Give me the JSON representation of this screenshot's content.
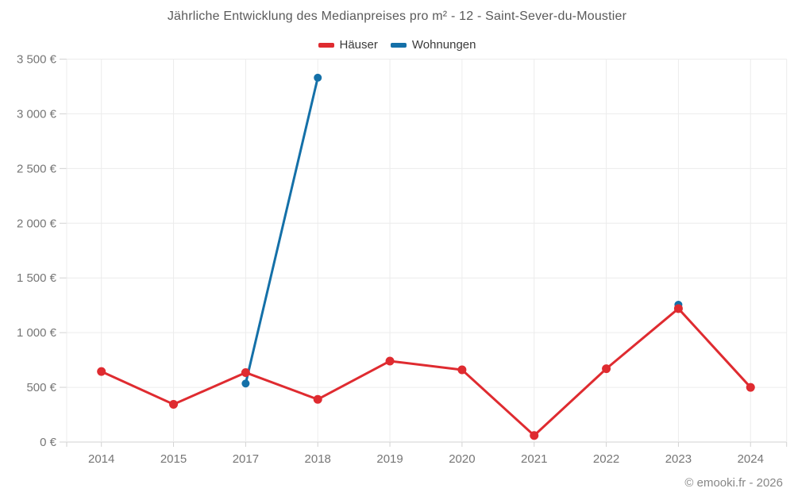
{
  "title": "Jährliche Entwicklung des Medianpreises pro m² - 12 - Saint-Sever-du-Moustier",
  "footer": "© emooki.fr - 2026",
  "colors": {
    "haeuser": "#df2b30",
    "wohnungen": "#1470a8",
    "grid": "#ececec",
    "axis": "#d2d2d2",
    "tick_label": "#767676",
    "title_text": "#5a5a5a",
    "legend_text": "#3a3a3a",
    "footer_text": "#878787",
    "background": "#ffffff"
  },
  "chart_data": {
    "type": "line",
    "title": "Jährliche Entwicklung des Medianpreises pro m² - 12 - Saint-Sever-du-Moustier",
    "categories": [
      "2014",
      "2015",
      "2017",
      "2018",
      "2019",
      "2020",
      "2021",
      "2022",
      "2023",
      "2024"
    ],
    "series": [
      {
        "name": "Häuser",
        "color": "#df2b30",
        "point_radius": 5.5,
        "values": [
          645,
          345,
          635,
          390,
          740,
          660,
          60,
          670,
          1220,
          500
        ]
      },
      {
        "name": "Wohnungen",
        "color": "#1470a8",
        "point_radius": 5,
        "values": [
          null,
          null,
          535,
          3330,
          null,
          null,
          null,
          null,
          1255,
          null
        ]
      }
    ],
    "xlabel": "",
    "ylabel": "",
    "ylim": [
      0,
      3500
    ],
    "ytick_step": 500,
    "ytick_labels": [
      "0 €",
      "500 €",
      "1 000 €",
      "1 500 €",
      "2 000 €",
      "2 500 €",
      "3 000 €",
      "3 500 €"
    ],
    "grid": true,
    "legend_position": "top"
  }
}
